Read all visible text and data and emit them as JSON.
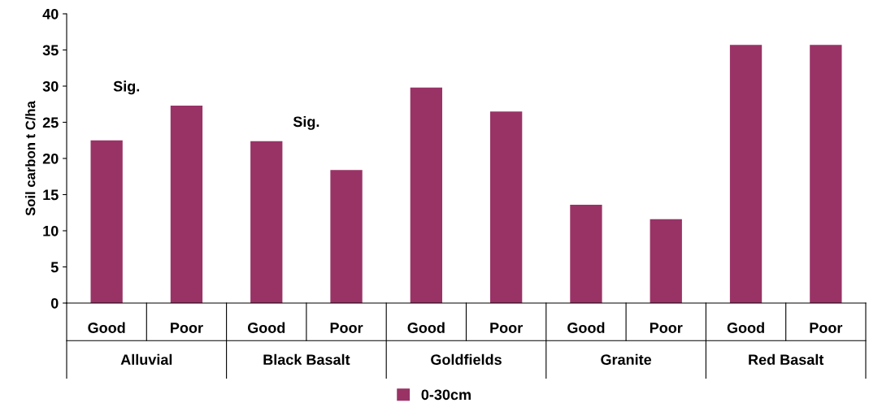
{
  "chart_data": {
    "type": "bar",
    "ylabel": "Soil carbon t C/ha",
    "categories": [
      "Good",
      "Poor",
      "Good",
      "Poor",
      "Good",
      "Poor",
      "Good",
      "Poor",
      "Good",
      "Poor"
    ],
    "series": [
      {
        "name": "0-30cm",
        "color": "#993366",
        "values": [
          22.5,
          27.3,
          22.4,
          18.4,
          29.8,
          26.5,
          13.6,
          11.6,
          35.7,
          35.7
        ]
      }
    ],
    "ylim": [
      0,
      40
    ],
    "yticks": [
      0,
      5,
      10,
      15,
      20,
      25,
      30,
      35,
      40
    ],
    "grid": false,
    "legend": "bottom",
    "annotations": [
      "Alluvial",
      "Black Basalt",
      "Goldfields",
      "Granite",
      "Red Basalt",
      "Sig.",
      "Sig."
    ]
  }
}
